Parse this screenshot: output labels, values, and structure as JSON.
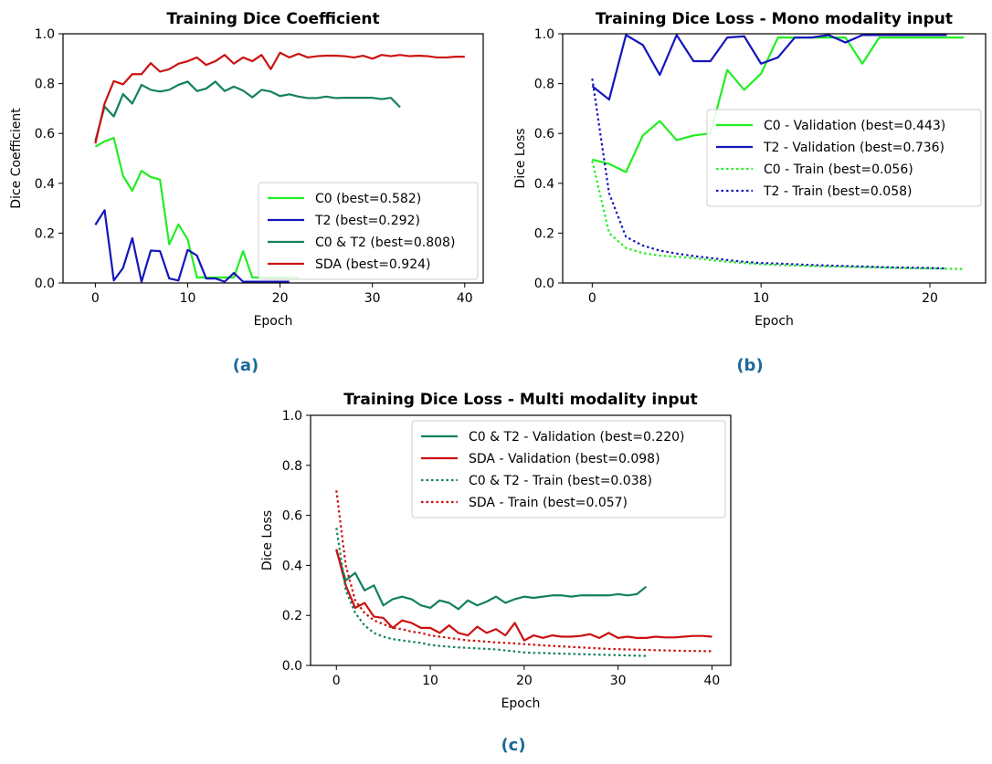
{
  "chart_data": [
    {
      "id": "a",
      "type": "line",
      "panel_label": "(a)",
      "title": "Training Dice Coefficient",
      "xlabel": "Epoch",
      "ylabel": "Dice Coefficient",
      "xlim": [
        -3.5,
        42
      ],
      "ylim": [
        0,
        1
      ],
      "xticks": [
        0,
        10,
        20,
        30,
        40
      ],
      "yticks": [
        0.0,
        0.2,
        0.4,
        0.6,
        0.8,
        1.0
      ],
      "legend_position": "lower-right",
      "grid": false,
      "series": [
        {
          "name": "C0 (best=0.582)",
          "color": "#22ee22",
          "style": "solid",
          "values": [
            0.547,
            0.568,
            0.582,
            0.43,
            0.37,
            0.45,
            0.425,
            0.415,
            0.155,
            0.235,
            0.175,
            0.022,
            0.022,
            0.022,
            0.022,
            0.022,
            0.128,
            0.022,
            0.022,
            0.022,
            0.022,
            0.022,
            0.022
          ]
        },
        {
          "name": "T2 (best=0.292)",
          "color": "#1515bb",
          "style": "solid",
          "values": [
            0.233,
            0.292,
            0.01,
            0.06,
            0.18,
            0.005,
            0.13,
            0.128,
            0.018,
            0.01,
            0.133,
            0.11,
            0.018,
            0.018,
            0.005,
            0.04,
            0.005,
            0.005,
            0.005,
            0.005,
            0.005,
            0.005
          ]
        },
        {
          "name": "C0 & T2 (best=0.808)",
          "color": "#138060",
          "style": "solid",
          "values": [
            0.57,
            0.708,
            0.668,
            0.758,
            0.72,
            0.795,
            0.775,
            0.768,
            0.775,
            0.795,
            0.808,
            0.77,
            0.78,
            0.808,
            0.77,
            0.788,
            0.772,
            0.745,
            0.775,
            0.768,
            0.75,
            0.757,
            0.748,
            0.742,
            0.742,
            0.748,
            0.742,
            0.743,
            0.743,
            0.743,
            0.743,
            0.738,
            0.743,
            0.705
          ]
        },
        {
          "name": "SDA (best=0.924)",
          "color": "#cc1111",
          "style": "solid",
          "values": [
            0.56,
            0.72,
            0.81,
            0.797,
            0.838,
            0.838,
            0.882,
            0.848,
            0.858,
            0.88,
            0.89,
            0.905,
            0.875,
            0.89,
            0.915,
            0.88,
            0.905,
            0.89,
            0.915,
            0.858,
            0.924,
            0.905,
            0.92,
            0.905,
            0.91,
            0.912,
            0.912,
            0.91,
            0.905,
            0.912,
            0.9,
            0.915,
            0.91,
            0.915,
            0.91,
            0.912,
            0.91,
            0.905,
            0.905,
            0.908,
            0.908
          ]
        }
      ]
    },
    {
      "id": "b",
      "type": "line",
      "panel_label": "(b)",
      "title": "Training Dice Loss - Mono modality input",
      "xlabel": "Epoch",
      "ylabel": "Dice Loss",
      "xlim": [
        -1.75,
        23.3
      ],
      "ylim": [
        0,
        1
      ],
      "xticks": [
        0,
        10,
        20
      ],
      "yticks": [
        0.0,
        0.2,
        0.4,
        0.6,
        0.8,
        1.0
      ],
      "legend_position": "center-right",
      "grid": false,
      "series": [
        {
          "name": "C0 - Validation (best=0.443)",
          "color": "#22ee22",
          "style": "solid",
          "values": [
            0.495,
            0.478,
            0.445,
            0.592,
            0.65,
            0.573,
            0.592,
            0.6,
            0.855,
            0.775,
            0.84,
            0.985,
            0.985,
            0.985,
            0.985,
            0.985,
            0.88,
            0.985,
            0.985,
            0.985,
            0.985,
            0.985,
            0.985
          ]
        },
        {
          "name": "T2 - Validation (best=0.736)",
          "color": "#1515bb",
          "style": "solid",
          "values": [
            0.79,
            0.736,
            0.995,
            0.955,
            0.835,
            0.995,
            0.89,
            0.89,
            0.985,
            0.99,
            0.88,
            0.905,
            0.985,
            0.985,
            0.995,
            0.965,
            0.995,
            0.995,
            0.995,
            0.995,
            0.995,
            0.995
          ]
        },
        {
          "name": "C0 - Train (best=0.056)",
          "color": "#22ee22",
          "style": "dotted",
          "values": [
            0.49,
            0.2,
            0.14,
            0.12,
            0.11,
            0.105,
            0.1,
            0.092,
            0.085,
            0.08,
            0.075,
            0.072,
            0.07,
            0.068,
            0.066,
            0.065,
            0.063,
            0.062,
            0.06,
            0.059,
            0.058,
            0.057,
            0.056
          ]
        },
        {
          "name": "T2 - Train (best=0.058)",
          "color": "#1515bb",
          "style": "dotted",
          "values": [
            0.82,
            0.36,
            0.185,
            0.15,
            0.13,
            0.118,
            0.108,
            0.1,
            0.092,
            0.085,
            0.08,
            0.078,
            0.075,
            0.072,
            0.07,
            0.068,
            0.066,
            0.064,
            0.062,
            0.061,
            0.06,
            0.058
          ]
        }
      ]
    },
    {
      "id": "c",
      "type": "line",
      "panel_label": "(c)",
      "title": "Training Dice Loss - Multi modality input",
      "xlabel": "Epoch",
      "ylabel": "Dice Loss",
      "xlim": [
        -2.75,
        42
      ],
      "ylim": [
        0,
        1
      ],
      "xticks": [
        0,
        10,
        20,
        30,
        40
      ],
      "yticks": [
        0.0,
        0.2,
        0.4,
        0.6,
        0.8,
        1.0
      ],
      "legend_position": "upper-right",
      "grid": false,
      "series": [
        {
          "name": "C0 & T2 - Validation (best=0.220)",
          "color": "#138060",
          "style": "solid",
          "values": [
            0.46,
            0.34,
            0.37,
            0.3,
            0.32,
            0.24,
            0.265,
            0.275,
            0.265,
            0.24,
            0.23,
            0.26,
            0.25,
            0.225,
            0.26,
            0.24,
            0.255,
            0.275,
            0.25,
            0.265,
            0.275,
            0.27,
            0.275,
            0.28,
            0.28,
            0.275,
            0.28,
            0.28,
            0.28,
            0.28,
            0.285,
            0.28,
            0.285,
            0.315
          ]
        },
        {
          "name": "SDA - Validation (best=0.098)",
          "color": "#cc1111",
          "style": "solid",
          "values": [
            0.465,
            0.32,
            0.23,
            0.25,
            0.195,
            0.19,
            0.15,
            0.18,
            0.17,
            0.15,
            0.15,
            0.13,
            0.16,
            0.13,
            0.12,
            0.155,
            0.13,
            0.145,
            0.12,
            0.17,
            0.1,
            0.12,
            0.11,
            0.12,
            0.115,
            0.115,
            0.118,
            0.125,
            0.11,
            0.13,
            0.11,
            0.115,
            0.11,
            0.11,
            0.115,
            0.112,
            0.112,
            0.115,
            0.118,
            0.118,
            0.115
          ]
        },
        {
          "name": "C0 & T2 - Train (best=0.038)",
          "color": "#138060",
          "style": "dotted",
          "values": [
            0.55,
            0.3,
            0.21,
            0.16,
            0.13,
            0.115,
            0.105,
            0.1,
            0.095,
            0.09,
            0.082,
            0.078,
            0.075,
            0.072,
            0.07,
            0.068,
            0.066,
            0.064,
            0.06,
            0.056,
            0.052,
            0.05,
            0.05,
            0.048,
            0.047,
            0.046,
            0.045,
            0.044,
            0.043,
            0.042,
            0.041,
            0.04,
            0.039,
            0.038
          ]
        },
        {
          "name": "SDA - Train (best=0.057)",
          "color": "#cc1111",
          "style": "dotted",
          "values": [
            0.7,
            0.4,
            0.26,
            0.21,
            0.18,
            0.165,
            0.15,
            0.145,
            0.135,
            0.13,
            0.12,
            0.115,
            0.11,
            0.105,
            0.1,
            0.098,
            0.095,
            0.092,
            0.09,
            0.088,
            0.085,
            0.083,
            0.08,
            0.078,
            0.076,
            0.074,
            0.072,
            0.07,
            0.068,
            0.066,
            0.065,
            0.064,
            0.063,
            0.062,
            0.061,
            0.06,
            0.059,
            0.058,
            0.058,
            0.057,
            0.057
          ]
        }
      ]
    }
  ]
}
